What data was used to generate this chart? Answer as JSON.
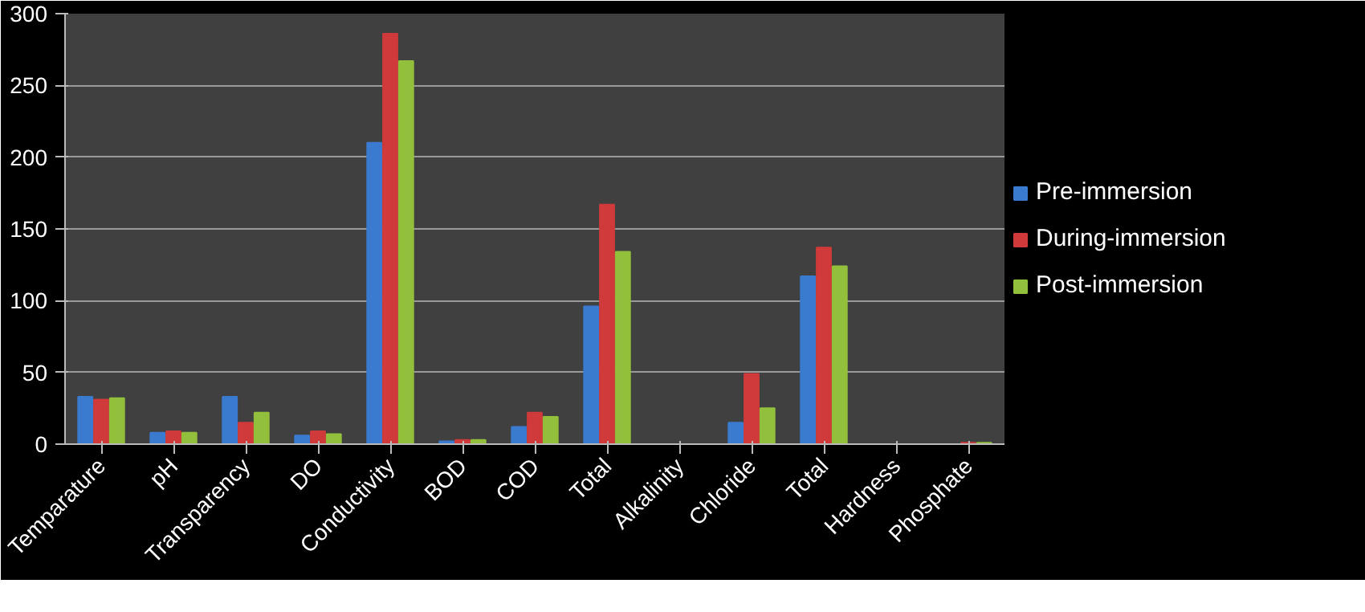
{
  "chart_data": {
    "type": "bar",
    "categories": [
      "Temparature",
      "pH",
      "Transparency",
      "DO",
      "Conductivity",
      "BOD",
      "COD",
      "Total",
      "Alkalinity",
      "Chloride",
      "Total",
      "Hardness",
      "Phosphate"
    ],
    "series": [
      {
        "name": "Pre-immersion",
        "color": "#3a7bd0",
        "values": [
          33,
          8,
          33,
          6,
          210,
          2,
          12,
          96,
          null,
          15,
          117,
          null,
          0
        ]
      },
      {
        "name": "During-immersion",
        "color": "#d03a3a",
        "values": [
          31,
          9,
          15,
          9,
          286,
          3,
          22,
          167,
          null,
          49,
          137,
          null,
          1
        ]
      },
      {
        "name": "Post-immersion",
        "color": "#93c03c",
        "values": [
          32,
          8,
          22,
          7,
          267,
          3,
          19,
          134,
          null,
          25,
          124,
          null,
          1
        ]
      }
    ],
    "ylim": [
      0,
      300
    ],
    "yticks": [
      0,
      50,
      100,
      150,
      200,
      250,
      300
    ],
    "grid": "y",
    "legend": "right"
  }
}
